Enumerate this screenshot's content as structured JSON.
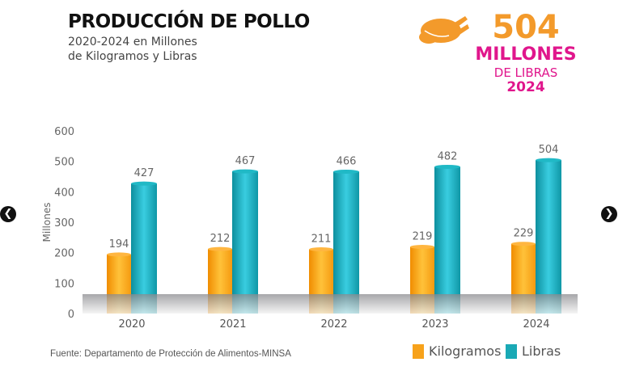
{
  "header": {
    "title": "PRODUCCIÓN DE POLLO",
    "subtitle_line1": "2020-2024 en Millones",
    "subtitle_line2": "de Kilogramos y Libras"
  },
  "highlight": {
    "icon": "roast-chicken-icon",
    "value": "504",
    "unit": "MILLONES",
    "unit2": "DE LIBRAS",
    "year": "2024",
    "value_color": "#f39a2b",
    "text_color": "#e0168c"
  },
  "source": "Fuente: Departamento de Protección de Alimentos-MINSA",
  "nav": {
    "prev_icon": "chevron-left-icon",
    "next_icon": "chevron-right-icon"
  },
  "chart_data": {
    "type": "bar",
    "ylabel": "Millones",
    "ylim": [
      0,
      600
    ],
    "yticks": [
      0,
      100,
      200,
      300,
      400,
      500,
      600
    ],
    "categories": [
      "2020",
      "2021",
      "2022",
      "2023",
      "2024"
    ],
    "series": [
      {
        "name": "Kilogramos",
        "color": "#f7a21b",
        "values": [
          194,
          212,
          211,
          219,
          229
        ]
      },
      {
        "name": "Libras",
        "color": "#1aa9b5",
        "values": [
          427,
          467,
          466,
          482,
          504
        ]
      }
    ],
    "legend": "bottom-right",
    "grid": false
  }
}
